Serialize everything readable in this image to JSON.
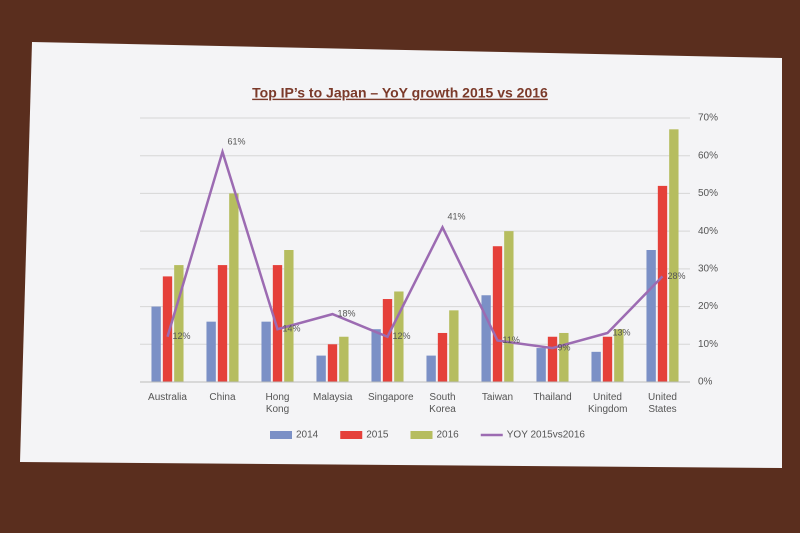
{
  "chart_data": {
    "type": "bar-line",
    "title": "Top IP’s to Japan – YoY growth 2015 vs 2016",
    "categories": [
      "Australia",
      "China",
      "Hong Kong",
      "Malaysia",
      "Singapore",
      "South Korea",
      "Taiwan",
      "Thailand",
      "United Kingdom",
      "United States"
    ],
    "series": [
      {
        "name": "2014",
        "color": "#7b90c6",
        "values": [
          20,
          16,
          16,
          7,
          14,
          7,
          23,
          9,
          8,
          35
        ]
      },
      {
        "name": "2015",
        "color": "#e5403a",
        "values": [
          28,
          31,
          31,
          10,
          22,
          13,
          36,
          12,
          12,
          52
        ]
      },
      {
        "name": "2016",
        "color": "#b6bd5f",
        "values": [
          31,
          50,
          35,
          12,
          24,
          19,
          40,
          13,
          14,
          67
        ]
      },
      {
        "name": "YOY 2015vs2016",
        "color": "#9c6bb2",
        "axis": "y2",
        "line": true,
        "values": [
          12,
          61,
          14,
          18,
          12,
          41,
          11,
          9,
          13,
          28
        ],
        "value_labels": [
          "12%",
          "61%",
          "14%",
          "18%",
          "12%",
          "41%",
          "11%",
          "9%",
          "13%",
          "28%"
        ]
      }
    ],
    "ylim": [
      0,
      70
    ],
    "y2lim": [
      0,
      70
    ],
    "y2ticks": [
      {
        "value": 0,
        "label": "0%"
      },
      {
        "value": 10,
        "label": "10%"
      },
      {
        "value": 20,
        "label": "20%"
      },
      {
        "value": 30,
        "label": "30%"
      },
      {
        "value": 40,
        "label": "40%"
      },
      {
        "value": 50,
        "label": "50%"
      },
      {
        "value": 60,
        "label": "60%"
      },
      {
        "value": 70,
        "label": "70%"
      }
    ],
    "grid": true
  }
}
